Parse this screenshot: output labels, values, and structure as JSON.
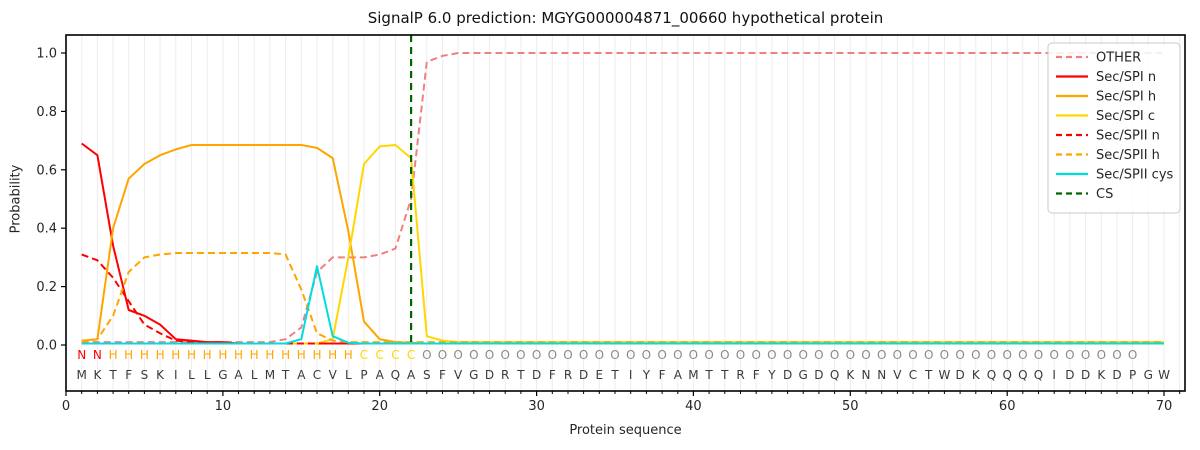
{
  "title": "SignalP 6.0 prediction: MGYG000004871_00660 hypothetical protein",
  "chart_data": {
    "type": "line",
    "title": "SignalP 6.0 prediction: MGYG000004871_00660 hypothetical protein",
    "xlabel": "Protein sequence",
    "ylabel": "Probability",
    "x_start": 1,
    "xlim": [
      0,
      71.3
    ],
    "ylim": [
      -0.16,
      1.06
    ],
    "x_ticks": [
      0,
      10,
      20,
      30,
      40,
      50,
      60,
      70
    ],
    "y_ticks": [
      "0.0",
      "0.2",
      "0.4",
      "0.6",
      "0.8",
      "1.0"
    ],
    "grid": true,
    "legend_position": "upper right",
    "series": [
      {
        "name": "OTHER",
        "color": "#f08080",
        "style": "dashed",
        "values": [
          0.01,
          0.01,
          0.01,
          0.01,
          0.01,
          0.01,
          0.01,
          0.01,
          0.01,
          0.01,
          0.01,
          0.01,
          0.01,
          0.02,
          0.06,
          0.25,
          0.3,
          0.3,
          0.3,
          0.31,
          0.33,
          0.5,
          0.97,
          0.99,
          1.0,
          1.0,
          1.0,
          1.0,
          1.0,
          1.0,
          1.0,
          1.0,
          1.0,
          1.0,
          1.0,
          1.0,
          1.0,
          1.0,
          1.0,
          1.0,
          1.0,
          1.0,
          1.0,
          1.0,
          1.0,
          1.0,
          1.0,
          1.0,
          1.0,
          1.0,
          1.0,
          1.0,
          1.0,
          1.0,
          1.0,
          1.0,
          1.0,
          1.0,
          1.0,
          1.0,
          1.0,
          1.0,
          1.0,
          1.0,
          1.0,
          1.0,
          1.0,
          1.0,
          1.0,
          1.0
        ]
      },
      {
        "name": "Sec/SPI n",
        "color": "#ff0000",
        "style": "solid",
        "values": [
          0.69,
          0.65,
          0.34,
          0.12,
          0.1,
          0.07,
          0.02,
          0.015,
          0.01,
          0.01,
          0.005,
          0.005,
          0.005,
          0.005,
          0.005,
          0.005,
          0.005,
          0.005,
          0.005,
          0.005,
          0.005,
          0.005,
          0.005,
          0.005,
          0.005,
          0.005,
          0.005,
          0.005,
          0.005,
          0.005,
          0.005,
          0.005,
          0.005,
          0.005,
          0.005,
          0.005,
          0.005,
          0.005,
          0.005,
          0.005,
          0.005,
          0.005,
          0.005,
          0.005,
          0.005,
          0.005,
          0.005,
          0.005,
          0.005,
          0.005,
          0.005,
          0.005,
          0.005,
          0.005,
          0.005,
          0.005,
          0.005,
          0.005,
          0.005,
          0.005,
          0.005,
          0.005,
          0.005,
          0.005,
          0.005,
          0.005,
          0.005,
          0.005,
          0.005,
          0.005
        ]
      },
      {
        "name": "Sec/SPI h",
        "color": "#ffa500",
        "style": "solid",
        "values": [
          0.015,
          0.02,
          0.4,
          0.57,
          0.62,
          0.65,
          0.67,
          0.685,
          0.685,
          0.685,
          0.685,
          0.685,
          0.685,
          0.685,
          0.685,
          0.675,
          0.64,
          0.39,
          0.08,
          0.02,
          0.01,
          0.008,
          0.005,
          0.005,
          0.005,
          0.005,
          0.005,
          0.005,
          0.005,
          0.005,
          0.005,
          0.005,
          0.005,
          0.005,
          0.005,
          0.005,
          0.005,
          0.005,
          0.005,
          0.005,
          0.005,
          0.005,
          0.005,
          0.005,
          0.005,
          0.005,
          0.005,
          0.005,
          0.005,
          0.005,
          0.005,
          0.005,
          0.005,
          0.005,
          0.005,
          0.005,
          0.005,
          0.005,
          0.005,
          0.005,
          0.005,
          0.005,
          0.005,
          0.005,
          0.005,
          0.005,
          0.005,
          0.005,
          0.005,
          0.005
        ]
      },
      {
        "name": "Sec/SPI c",
        "color": "#ffd700",
        "style": "solid",
        "values": [
          0.005,
          0.005,
          0.005,
          0.005,
          0.005,
          0.005,
          0.005,
          0.005,
          0.005,
          0.005,
          0.005,
          0.005,
          0.005,
          0.005,
          0.005,
          0.005,
          0.02,
          0.3,
          0.62,
          0.68,
          0.685,
          0.64,
          0.03,
          0.015,
          0.01,
          0.01,
          0.01,
          0.01,
          0.01,
          0.01,
          0.01,
          0.01,
          0.01,
          0.01,
          0.01,
          0.01,
          0.01,
          0.01,
          0.01,
          0.01,
          0.01,
          0.01,
          0.01,
          0.01,
          0.01,
          0.01,
          0.01,
          0.01,
          0.01,
          0.01,
          0.01,
          0.01,
          0.01,
          0.01,
          0.01,
          0.01,
          0.01,
          0.01,
          0.01,
          0.01,
          0.01,
          0.01,
          0.01,
          0.01,
          0.01,
          0.01,
          0.01,
          0.01,
          0.01,
          0.01
        ]
      },
      {
        "name": "Sec/SPII n",
        "color": "#ff0000",
        "style": "dashed",
        "values": [
          0.31,
          0.29,
          0.23,
          0.15,
          0.07,
          0.04,
          0.015,
          0.01,
          0.005,
          0.005,
          0.005,
          0.005,
          0.005,
          0.005,
          0.005,
          0.005,
          0.005,
          0.005,
          0.005,
          0.005,
          0.005,
          0.005,
          0.005,
          0.005,
          0.005,
          0.005,
          0.005,
          0.005,
          0.005,
          0.005,
          0.005,
          0.005,
          0.005,
          0.005,
          0.005,
          0.005,
          0.005,
          0.005,
          0.005,
          0.005,
          0.005,
          0.005,
          0.005,
          0.005,
          0.005,
          0.005,
          0.005,
          0.005,
          0.005,
          0.005,
          0.005,
          0.005,
          0.005,
          0.005,
          0.005,
          0.005,
          0.005,
          0.005,
          0.005,
          0.005,
          0.005,
          0.005,
          0.005,
          0.005,
          0.005,
          0.005,
          0.005,
          0.005,
          0.005,
          0.005
        ]
      },
      {
        "name": "Sec/SPII h",
        "color": "#ffa500",
        "style": "dashed",
        "values": [
          0.01,
          0.02,
          0.1,
          0.25,
          0.3,
          0.31,
          0.315,
          0.315,
          0.315,
          0.315,
          0.315,
          0.315,
          0.315,
          0.31,
          0.19,
          0.04,
          0.015,
          0.01,
          0.01,
          0.01,
          0.01,
          0.01,
          0.01,
          0.01,
          0.01,
          0.01,
          0.01,
          0.01,
          0.01,
          0.01,
          0.01,
          0.01,
          0.01,
          0.01,
          0.01,
          0.01,
          0.01,
          0.01,
          0.01,
          0.01,
          0.01,
          0.01,
          0.01,
          0.01,
          0.01,
          0.01,
          0.01,
          0.01,
          0.01,
          0.01,
          0.01,
          0.01,
          0.01,
          0.01,
          0.01,
          0.01,
          0.01,
          0.01,
          0.01,
          0.01,
          0.01,
          0.01,
          0.01,
          0.01,
          0.01,
          0.01,
          0.01,
          0.01,
          0.01,
          0.01
        ]
      },
      {
        "name": "Sec/SPII cys",
        "color": "#00dddd",
        "style": "solid",
        "values": [
          0.005,
          0.005,
          0.005,
          0.005,
          0.005,
          0.005,
          0.005,
          0.005,
          0.005,
          0.005,
          0.005,
          0.005,
          0.005,
          0.005,
          0.02,
          0.27,
          0.03,
          0.008,
          0.005,
          0.005,
          0.005,
          0.005,
          0.005,
          0.005,
          0.005,
          0.005,
          0.005,
          0.005,
          0.005,
          0.005,
          0.005,
          0.005,
          0.005,
          0.005,
          0.005,
          0.005,
          0.005,
          0.005,
          0.005,
          0.005,
          0.005,
          0.005,
          0.005,
          0.005,
          0.005,
          0.005,
          0.005,
          0.005,
          0.005,
          0.005,
          0.005,
          0.005,
          0.005,
          0.005,
          0.005,
          0.005,
          0.005,
          0.005,
          0.005,
          0.005,
          0.005,
          0.005,
          0.005,
          0.005,
          0.005,
          0.005,
          0.005,
          0.005,
          0.005,
          0.005
        ]
      }
    ],
    "cs_line": {
      "label": "CS",
      "position": 22,
      "color": "#006400",
      "style": "dashed"
    },
    "sequence": "MKTFSKILLGALMTACVLPAQASFVGDRTDFRDETIYFAMTTRFYDGDQKNNVCTWDKQQQQIDDKDPGW",
    "region_labels": "NNHHHHHHHHHHHHHHHHCCCCOOOOOOOOOOOOOOOOOOOOOOOOOOOOOOOOOOOOOOOOOOOOOO",
    "region_colors": {
      "N": "#ff0000",
      "H": "#ffa500",
      "C": "#ffd700",
      "O": "#8a8a8a"
    },
    "sequence_color": "#3a3a3a",
    "grid_color": "#ececec"
  }
}
